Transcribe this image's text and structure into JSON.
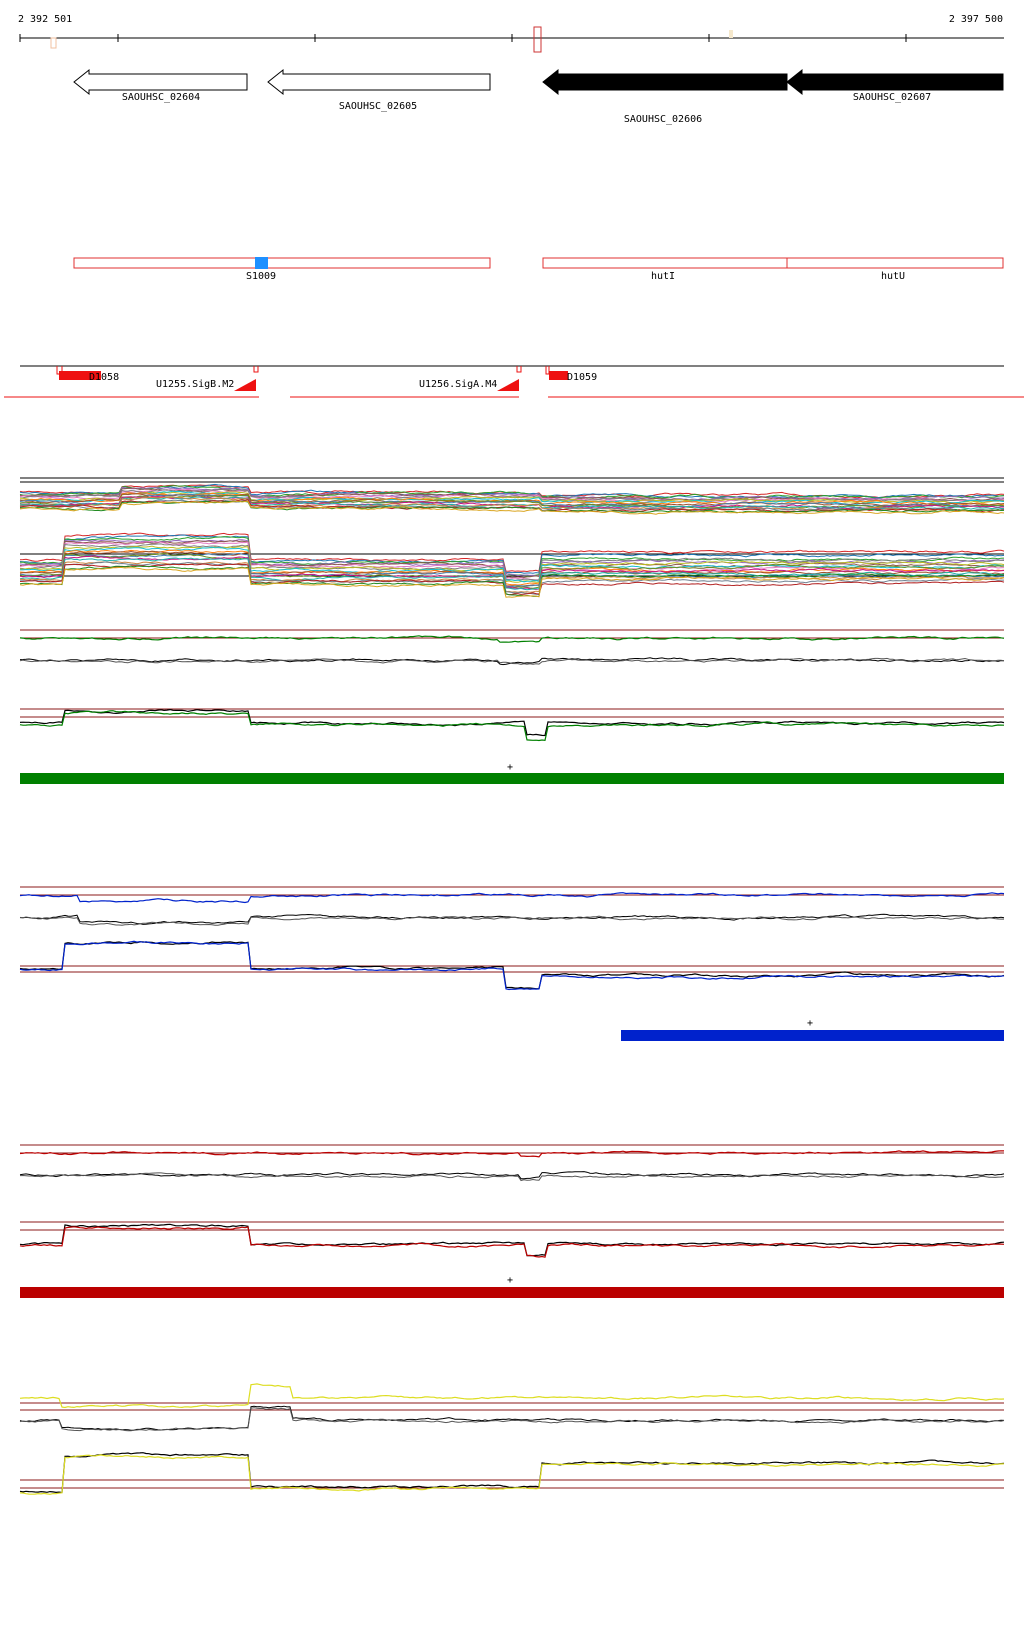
{
  "coordinates": {
    "start": "2 392 501",
    "end": "2 397 500"
  },
  "genes": [
    {
      "name": "SAOUHSC_02604",
      "strand": "-",
      "filled": false
    },
    {
      "name": "SAOUHSC_02605",
      "strand": "-",
      "filled": false
    },
    {
      "name": "SAOUHSC_02606",
      "strand": "-",
      "filled": true
    },
    {
      "name": "SAOUHSC_02607",
      "strand": "-",
      "filled": true
    }
  ],
  "annotations": {
    "marker": "S1009",
    "boxes": [
      "hutI",
      "hutU"
    ]
  },
  "features": [
    {
      "name": "D1058"
    },
    {
      "name": "U1255.SigB.M2"
    },
    {
      "name": "U1256.SigA.M4"
    },
    {
      "name": "D1059"
    }
  ],
  "strand_marks": [
    "+",
    "+",
    "+"
  ],
  "colors": {
    "gene_outline": "#000000",
    "annotation_box": "#e03030",
    "marker": "#1e90ff",
    "feature": "#ee1111",
    "panel_green": "#008000",
    "panel_blue": "#0022cc",
    "panel_red": "#bb0000",
    "panel_yellow": "#dddd22",
    "reference_line": "#8b1a1a"
  }
}
